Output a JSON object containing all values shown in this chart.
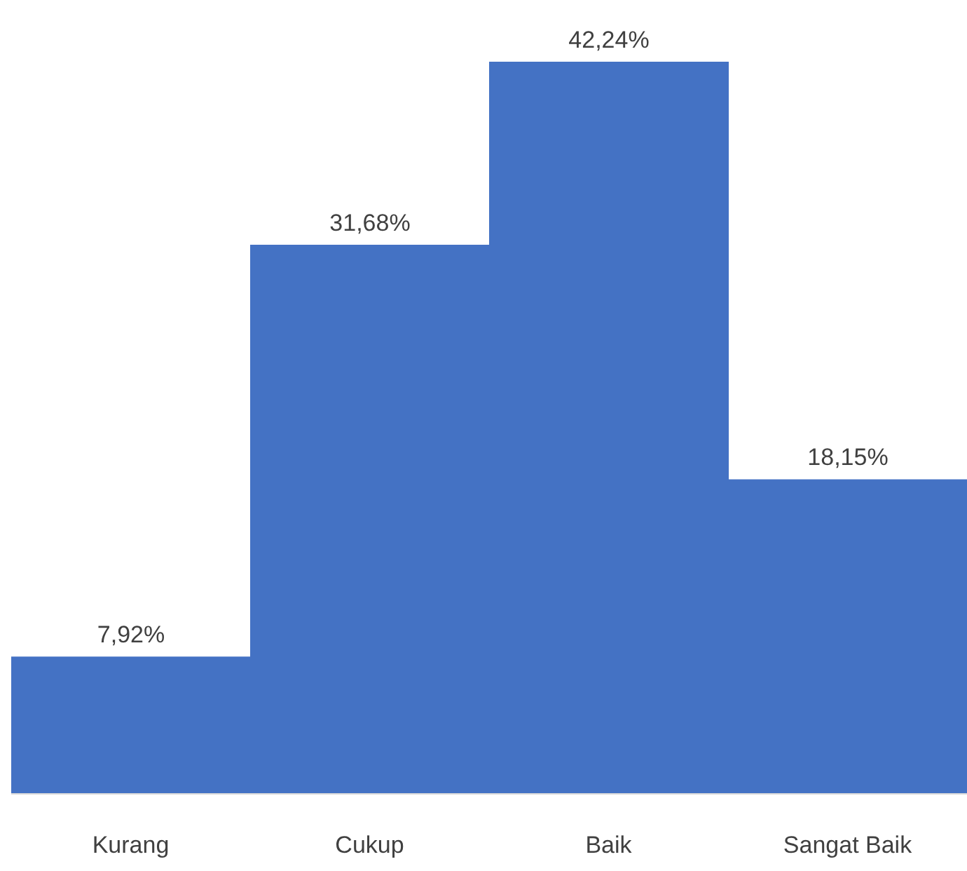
{
  "chart_data": {
    "type": "bar",
    "categories": [
      "Kurang",
      "Cukup",
      "Baik",
      "Sangat Baik"
    ],
    "values": [
      7.92,
      31.68,
      42.24,
      18.15
    ],
    "value_labels": [
      "7,92%",
      "31,68%",
      "42,24%",
      "18,15%"
    ],
    "color": "#4472c4"
  }
}
